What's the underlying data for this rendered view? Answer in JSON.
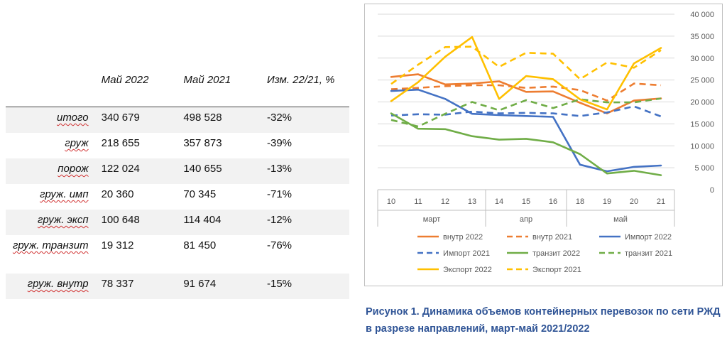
{
  "table": {
    "headers": [
      "",
      "Май 2022",
      "Май 2021",
      "Изм. 22/21, %"
    ],
    "rows": [
      {
        "label": "итого",
        "c1": "340 679",
        "c2": "498 528",
        "c3": "-32%"
      },
      {
        "label": "груж",
        "c1": "218 655",
        "c2": "357 873",
        "c3": "-39%"
      },
      {
        "label": "порож",
        "c1": "122 024",
        "c2": "140 655",
        "c3": "-13%"
      },
      {
        "label": "груж. имп",
        "c1": "20 360",
        "c2": "70 345",
        "c3": "-71%"
      },
      {
        "label": "груж. эксп",
        "c1": "100 648",
        "c2": "114 404",
        "c3": "-12%"
      },
      {
        "label": "груж. транзит",
        "c1": "19 312",
        "c2": "81 450",
        "c3": "-76%"
      },
      {
        "label": "груж. внутр",
        "c1": "78 337",
        "c2": "91 674",
        "c3": "-15%"
      }
    ]
  },
  "caption": "Рисунок 1. Динамика объемов контейнерных перевозок по сети РЖД в разрезе направлений, март-май 2021/2022",
  "chart_data": {
    "type": "line",
    "title": "",
    "x": [
      "10",
      "11",
      "12",
      "13",
      "14",
      "15",
      "16",
      "18",
      "19",
      "20",
      "21"
    ],
    "x_groups": [
      {
        "label": "март",
        "span": 4
      },
      {
        "label": "апр",
        "span": 3
      },
      {
        "label": "май",
        "span": 4
      }
    ],
    "ylim": [
      0,
      40000
    ],
    "yticks": [
      0,
      5000,
      10000,
      15000,
      20000,
      25000,
      30000,
      35000,
      40000
    ],
    "ytick_labels": [
      "0",
      "5 000",
      "10 000",
      "15 000",
      "20 000",
      "25 000",
      "30 000",
      "35 000",
      "40 000"
    ],
    "y_axis_side": "right",
    "grid": true,
    "legend_position": "bottom",
    "series": [
      {
        "name": "внутр  2022",
        "color": "#ed7d31",
        "dash": false,
        "values": [
          25700,
          26300,
          24000,
          24200,
          24700,
          22300,
          22400,
          19800,
          17400,
          20300,
          20800
        ]
      },
      {
        "name": "внутр  2021",
        "color": "#ed7d31",
        "dash": true,
        "values": [
          22900,
          23200,
          23600,
          23800,
          23800,
          23200,
          23500,
          22700,
          20300,
          24200,
          23800
        ]
      },
      {
        "name": "Импорт  2022",
        "color": "#4472c4",
        "dash": false,
        "values": [
          22500,
          22800,
          20700,
          17300,
          17000,
          16800,
          16600,
          5700,
          4200,
          5200,
          5500
        ]
      },
      {
        "name": "Импорт  2021",
        "color": "#4472c4",
        "dash": true,
        "values": [
          16900,
          17200,
          17100,
          17800,
          17400,
          17500,
          17400,
          16800,
          17600,
          19000,
          16700
        ]
      },
      {
        "name": "транзит  2022",
        "color": "#70ad47",
        "dash": false,
        "values": [
          17400,
          13900,
          13800,
          12200,
          11400,
          11600,
          10800,
          8100,
          3700,
          4300,
          3300
        ]
      },
      {
        "name": "транзит  2021",
        "color": "#70ad47",
        "dash": true,
        "values": [
          15900,
          14400,
          17300,
          20000,
          18100,
          20400,
          18600,
          20600,
          19900,
          19900,
          20800
        ]
      },
      {
        "name": "Экспорт  2022",
        "color": "#ffc000",
        "dash": false,
        "values": [
          20200,
          24500,
          30300,
          34800,
          20700,
          25900,
          25200,
          20600,
          18300,
          28800,
          32300
        ]
      },
      {
        "name": "Экспорт  2021",
        "color": "#ffc000",
        "dash": true,
        "values": [
          24100,
          28500,
          32500,
          32600,
          28000,
          31200,
          31000,
          25200,
          29000,
          27800,
          31800
        ]
      }
    ]
  }
}
